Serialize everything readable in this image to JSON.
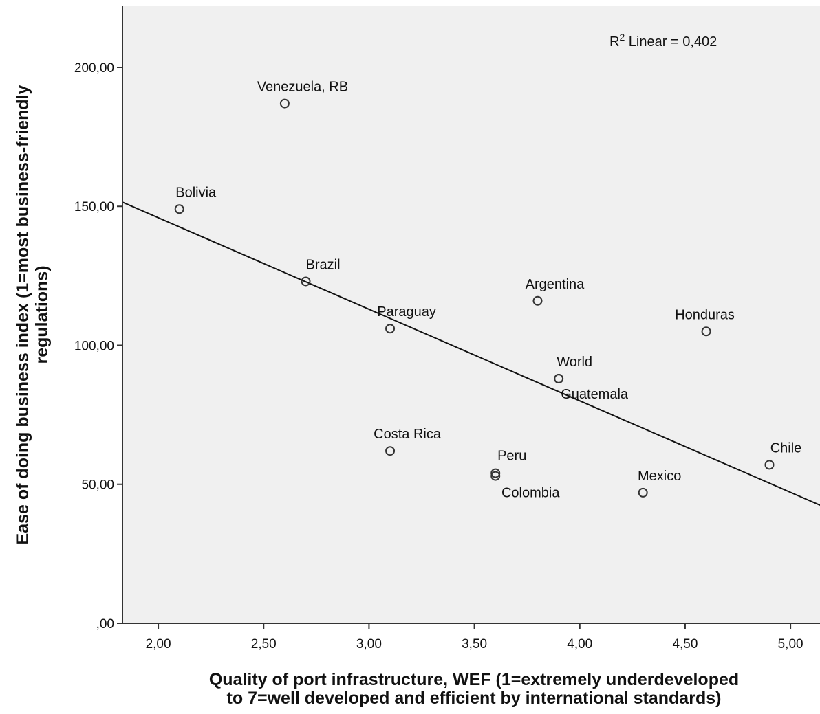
{
  "chart_data": {
    "type": "scatter",
    "xlabel_lines": [
      "Quality of port infrastructure, WEF (1=extremely underdeveloped",
      "to 7=well developed and efficient by international standards)"
    ],
    "ylabel_lines": [
      "Ease of doing business index (1=most business-friendly",
      "regulations)"
    ],
    "xlim": [
      1.83,
      5.14
    ],
    "ylim": [
      0,
      222
    ],
    "x_ticks": [
      2.0,
      2.5,
      3.0,
      3.5,
      4.0,
      4.5,
      5.0
    ],
    "x_tick_labels": [
      "2,00",
      "2,50",
      "3,00",
      "3,50",
      "4,00",
      "4,50",
      "5,00"
    ],
    "y_ticks": [
      0,
      50,
      100,
      150,
      200
    ],
    "y_tick_labels": [
      ",00",
      "50,00",
      "100,00",
      "150,00",
      "200,00"
    ],
    "points": [
      {
        "label": "Venezuela, RB",
        "x": 2.6,
        "y": 187
      },
      {
        "label": "Bolivia",
        "x": 2.1,
        "y": 149
      },
      {
        "label": "Brazil",
        "x": 2.7,
        "y": 123
      },
      {
        "label": "Argentina",
        "x": 3.8,
        "y": 116
      },
      {
        "label": "Paraguay",
        "x": 3.1,
        "y": 106
      },
      {
        "label": "Honduras",
        "x": 4.6,
        "y": 105
      },
      {
        "label": "World",
        "x": 3.9,
        "y": 88
      },
      {
        "label": "Guatemala",
        "x": 3.9,
        "y": 88
      },
      {
        "label": "Costa Rica",
        "x": 3.1,
        "y": 62
      },
      {
        "label": "Peru",
        "x": 3.6,
        "y": 54
      },
      {
        "label": "Colombia",
        "x": 3.6,
        "y": 53
      },
      {
        "label": "Mexico",
        "x": 4.3,
        "y": 47
      },
      {
        "label": "Chile",
        "x": 4.9,
        "y": 57
      }
    ],
    "fit_line": {
      "type": "linear",
      "x": [
        1.83,
        5.14
      ],
      "y": [
        151.5,
        42.5
      ]
    },
    "r2": {
      "prefix": "R",
      "superscript": "2",
      "text": " Linear = 0,402"
    },
    "grid": false,
    "legend": "none"
  }
}
